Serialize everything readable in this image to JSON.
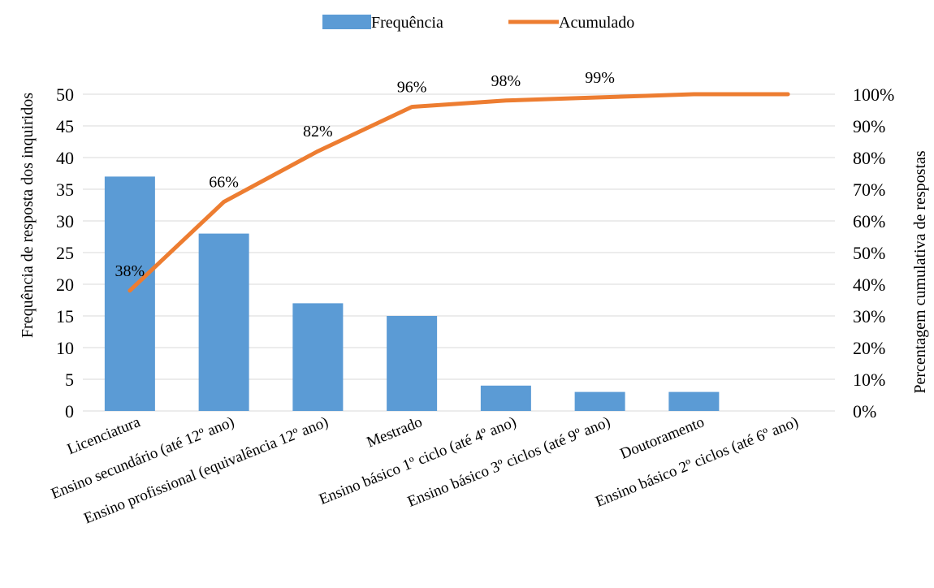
{
  "chart_data": {
    "type": "bar",
    "categories": [
      "Licenciatura",
      "Ensino secundário (até 12º ano)",
      "Ensino profissional (equivalência 12º ano)",
      "Mestrado",
      "Ensino básico 1º ciclo (até 4º ano)",
      "Ensino básico 3º ciclos (até 9º ano)",
      "Doutoramento",
      "Ensino básico 2º ciclos (até 6º ano)"
    ],
    "series": [
      {
        "name": "Frequência",
        "type": "bar",
        "axis": "left",
        "color": "#5B9BD5",
        "values": [
          37,
          28,
          17,
          15,
          4,
          3,
          3,
          0
        ]
      },
      {
        "name": "Acumulado",
        "type": "line",
        "axis": "right",
        "color": "#ED7D31",
        "values": [
          0.38,
          0.66,
          0.82,
          0.96,
          0.98,
          0.99,
          1.0,
          1.0
        ],
        "data_labels": [
          "38%",
          "66%",
          "82%",
          "96%",
          "98%",
          "99%",
          "",
          ""
        ]
      }
    ],
    "ylabel": "Frequência de resposta dos inquiridos",
    "y2label": "Percentagem cumulativa de respostas",
    "ylim": [
      0,
      50
    ],
    "yticks": [
      "0",
      "5",
      "10",
      "15",
      "20",
      "25",
      "30",
      "35",
      "40",
      "45",
      "50"
    ],
    "y2lim": [
      0,
      1
    ],
    "y2ticks": [
      "0%",
      "10%",
      "20%",
      "30%",
      "40%",
      "50%",
      "60%",
      "70%",
      "80%",
      "90%",
      "100%"
    ],
    "grid": true,
    "legend": "top-center",
    "colors": {
      "grid": "#D9D9D9"
    }
  }
}
